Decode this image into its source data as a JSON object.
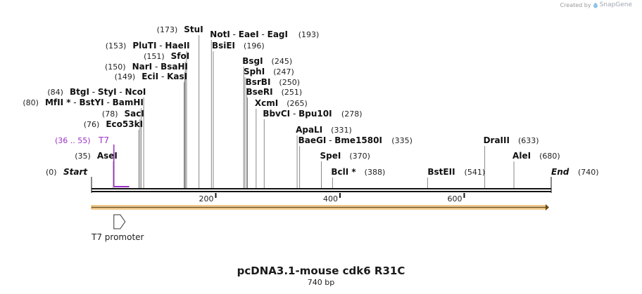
{
  "credit": {
    "prefix": "Created by",
    "brand": "SnapGene"
  },
  "title": "pcDNA3.1-mouse cdk6 R31C",
  "length_label": "740 bp",
  "sequence_length": 740,
  "ticks": [
    {
      "pos": 200,
      "label": "200"
    },
    {
      "pos": 400,
      "label": "400"
    },
    {
      "pos": 600,
      "label": "600"
    }
  ],
  "start_label": {
    "pos": 0,
    "pos_label": "(0)",
    "name": "Start"
  },
  "end_label": {
    "pos": 740,
    "pos_label": "(740)",
    "name": "End"
  },
  "primer": {
    "range_label": "(36 .. 55)",
    "name": "T7",
    "start": 36,
    "end": 55,
    "color": "#9b30c8"
  },
  "feature": {
    "name": "T7 promoter",
    "start": 36,
    "end": 55,
    "color": "#f2b25c"
  },
  "arrow_color": "#e8a13a",
  "sites": [
    {
      "pos": 35,
      "pos_label": "(35)",
      "names": [
        "AseI"
      ],
      "side": "left"
    },
    {
      "pos": 76,
      "pos_label": "(76)",
      "names": [
        "Eco53kI"
      ],
      "side": "left"
    },
    {
      "pos": 78,
      "pos_label": "(78)",
      "names": [
        "SacI"
      ],
      "side": "left"
    },
    {
      "pos": 80,
      "pos_label": "(80)",
      "names": [
        "MfII *",
        "BstYI",
        "BamHI"
      ],
      "side": "left"
    },
    {
      "pos": 84,
      "pos_label": "(84)",
      "names": [
        "BtgI",
        "StyI",
        "NcoI"
      ],
      "side": "left"
    },
    {
      "pos": 149,
      "pos_label": "(149)",
      "names": [
        "EciI",
        "KasI"
      ],
      "side": "left"
    },
    {
      "pos": 150,
      "pos_label": "(150)",
      "names": [
        "NarI",
        "BsaHI"
      ],
      "side": "left"
    },
    {
      "pos": 151,
      "pos_label": "(151)",
      "names": [
        "SfoI"
      ],
      "side": "left"
    },
    {
      "pos": 153,
      "pos_label": "(153)",
      "names": [
        "PluTI",
        "HaeII"
      ],
      "side": "left"
    },
    {
      "pos": 173,
      "pos_label": "(173)",
      "names": [
        "StuI"
      ],
      "side": "left"
    },
    {
      "pos": 193,
      "pos_label": "(193)",
      "names": [
        "NotI",
        "EaeI",
        "EagI"
      ],
      "side": "right"
    },
    {
      "pos": 196,
      "pos_label": "(196)",
      "names": [
        "BsiEI"
      ],
      "side": "right"
    },
    {
      "pos": 245,
      "pos_label": "(245)",
      "names": [
        "BsgI"
      ],
      "side": "right"
    },
    {
      "pos": 247,
      "pos_label": "(247)",
      "names": [
        "SphI"
      ],
      "side": "right"
    },
    {
      "pos": 250,
      "pos_label": "(250)",
      "names": [
        "BsrBI"
      ],
      "side": "right"
    },
    {
      "pos": 251,
      "pos_label": "(251)",
      "names": [
        "BseRI"
      ],
      "side": "right"
    },
    {
      "pos": 265,
      "pos_label": "(265)",
      "names": [
        "XcmI"
      ],
      "side": "right"
    },
    {
      "pos": 278,
      "pos_label": "(278)",
      "names": [
        "BbvCI",
        "Bpu10I"
      ],
      "side": "right"
    },
    {
      "pos": 331,
      "pos_label": "(331)",
      "names": [
        "ApaLI"
      ],
      "side": "right"
    },
    {
      "pos": 335,
      "pos_label": "(335)",
      "names": [
        "BaeGI",
        "Bme1580I"
      ],
      "side": "right"
    },
    {
      "pos": 370,
      "pos_label": "(370)",
      "names": [
        "SpeI"
      ],
      "side": "right"
    },
    {
      "pos": 388,
      "pos_label": "(388)",
      "names": [
        "BclI *"
      ],
      "side": "right"
    },
    {
      "pos": 541,
      "pos_label": "(541)",
      "names": [
        "BstEII"
      ],
      "side": "left"
    },
    {
      "pos": 633,
      "pos_label": "(633)",
      "names": [
        "DraIII"
      ],
      "side": "right"
    },
    {
      "pos": 680,
      "pos_label": "(680)",
      "names": [
        "AleI"
      ],
      "side": "right"
    }
  ]
}
